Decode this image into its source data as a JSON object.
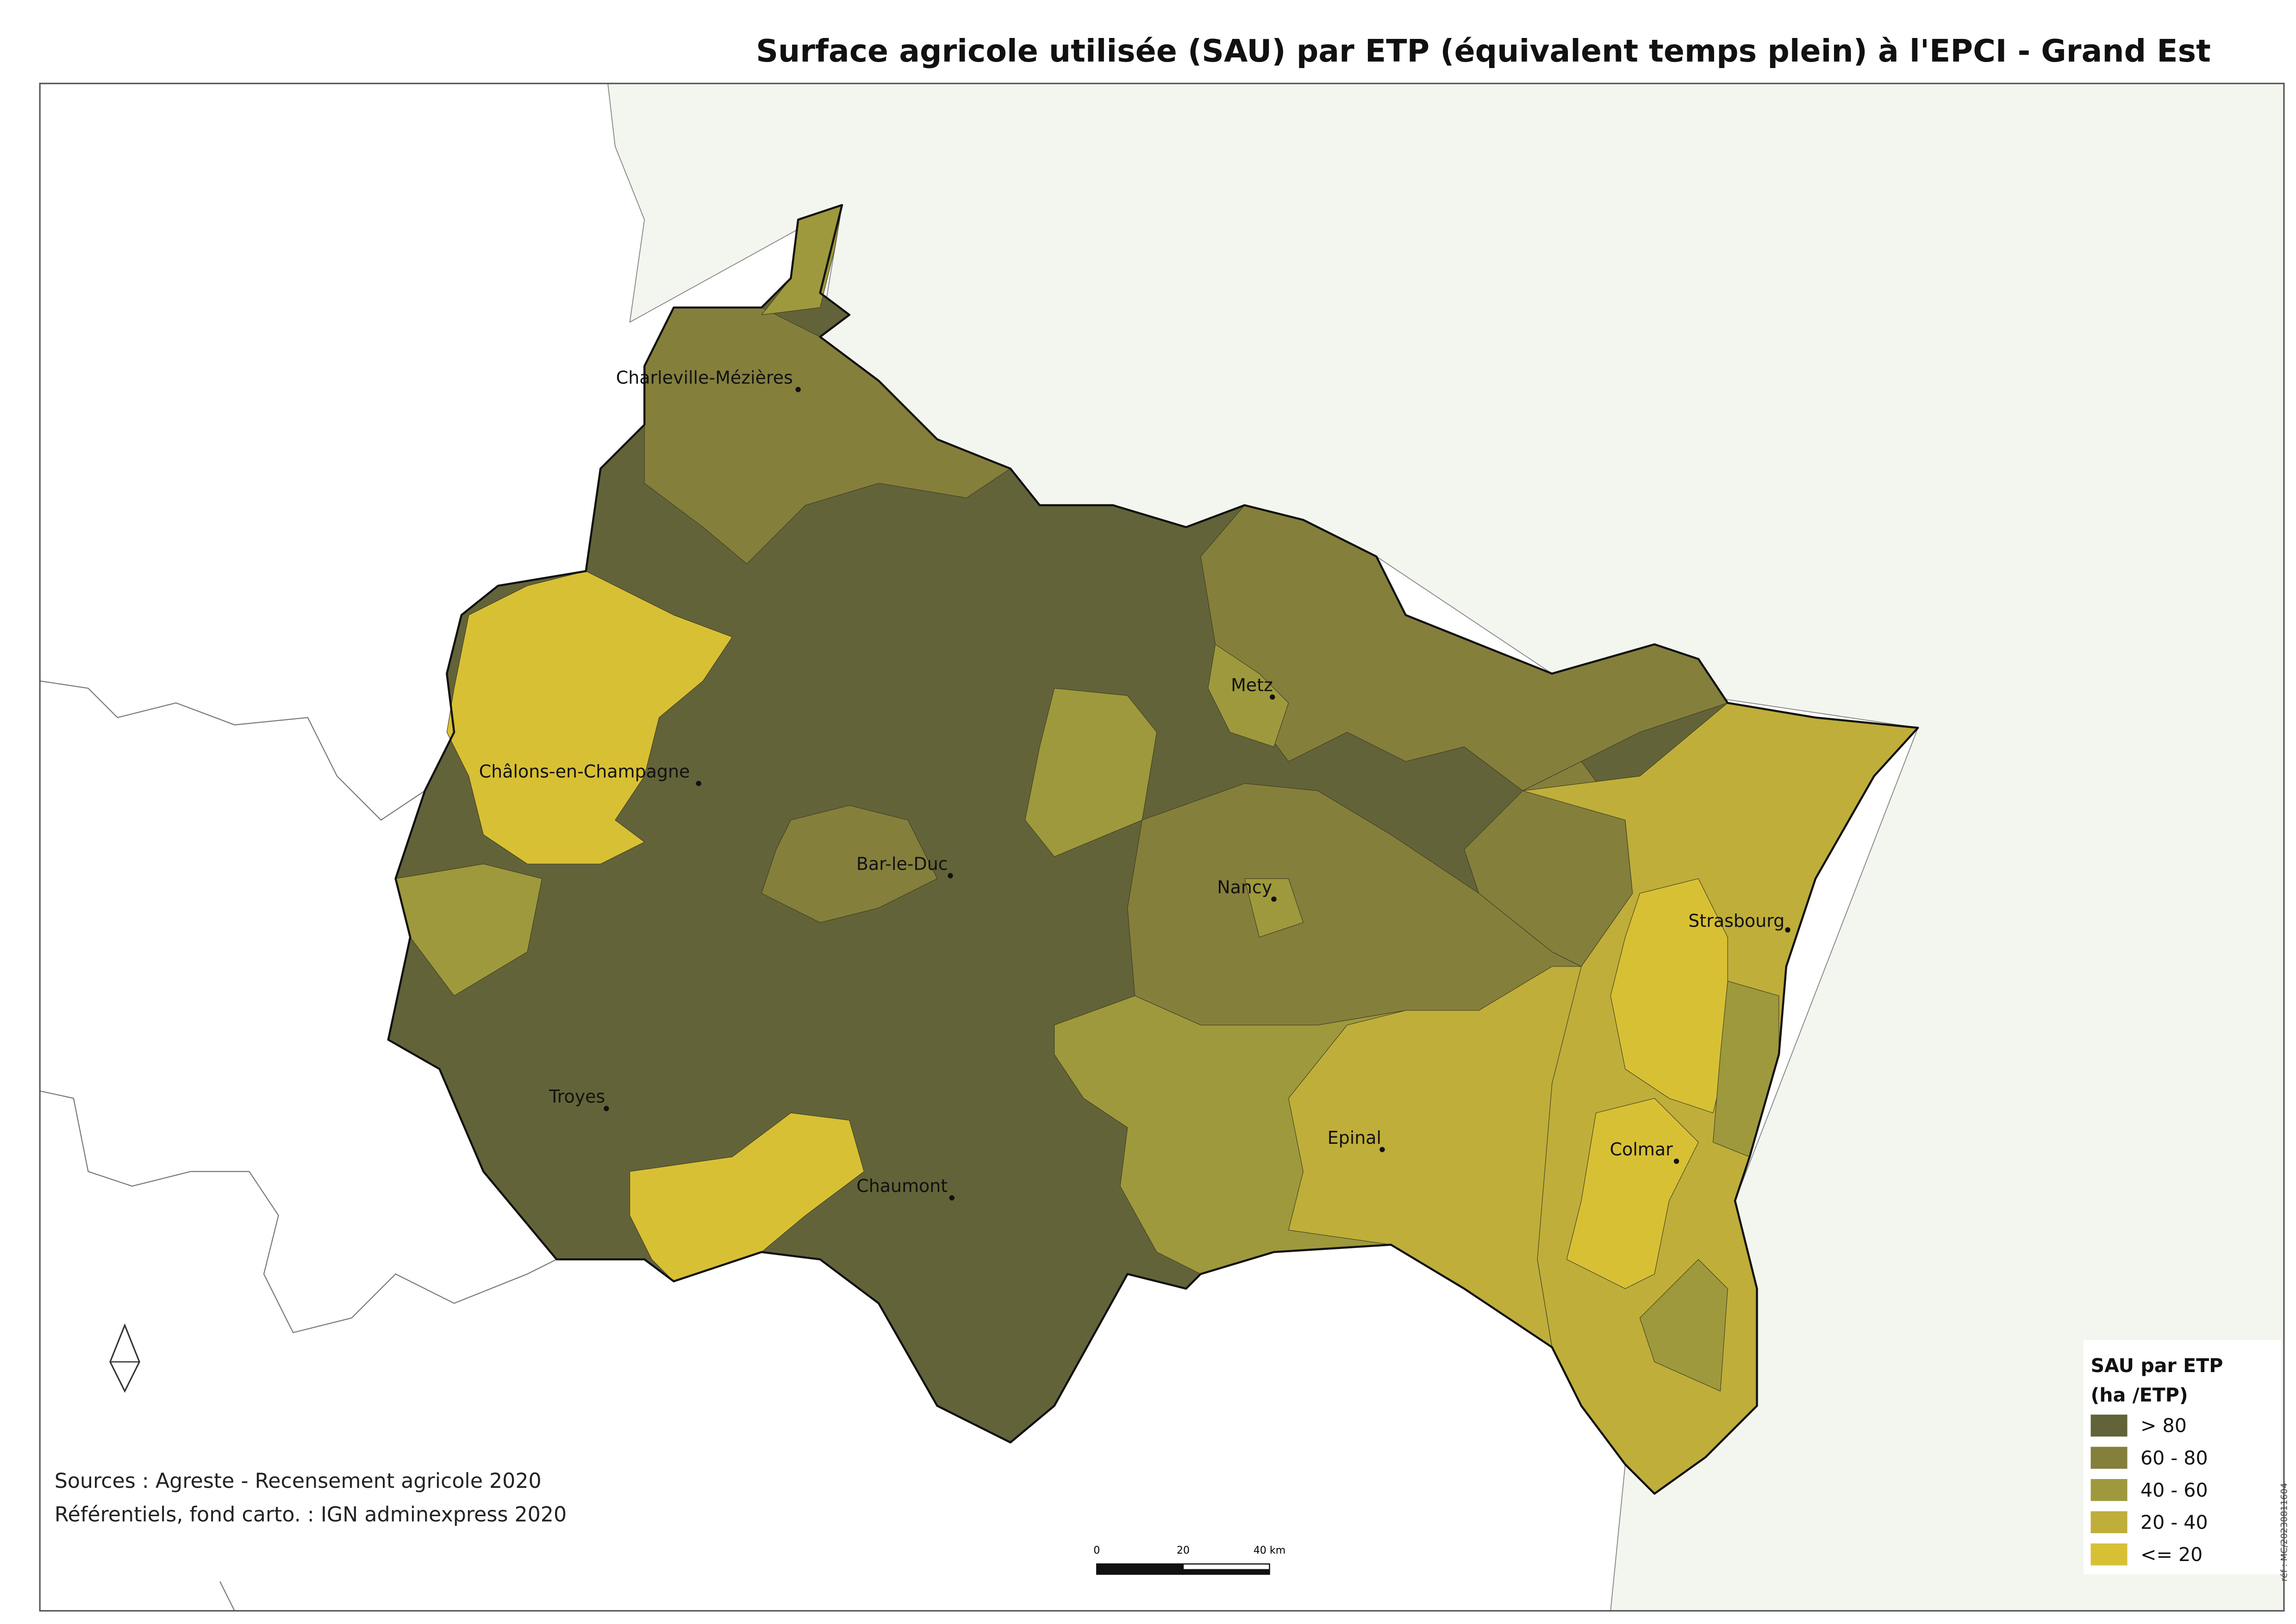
{
  "title": "Surface agricole utilisée (SAU) par ETP (équivalent temps plein) à l'EPCI - Grand Est",
  "cities": [
    "Charleville-Mézières",
    "Châlons-en-Champagne",
    "Metz",
    "Bar-le-Duc",
    "Nancy",
    "Strasbourg",
    "Troyes",
    "Epinal",
    "Colmar",
    "Chaumont"
  ],
  "legend": {
    "title_line1": "SAU par ETP",
    "title_line2": "(ha /ETP)",
    "classes": [
      {
        "label": "> 80",
        "color": "#636339"
      },
      {
        "label": "60 - 80",
        "color": "#857f3c"
      },
      {
        "label": "40 - 60",
        "color": "#9e993c"
      },
      {
        "label": "20 - 40",
        "color": "#bfae3a"
      },
      {
        "label": "<= 20",
        "color": "#d8c035"
      }
    ]
  },
  "sources": [
    "Sources : Agreste - Recensement agricole 2020",
    "Référentiels, fond carto. : IGN adminexpress 2020"
  ],
  "scale_bar": {
    "labels": [
      "0",
      "20",
      "40 km"
    ]
  },
  "reference": "réf : MC/20230811604"
}
